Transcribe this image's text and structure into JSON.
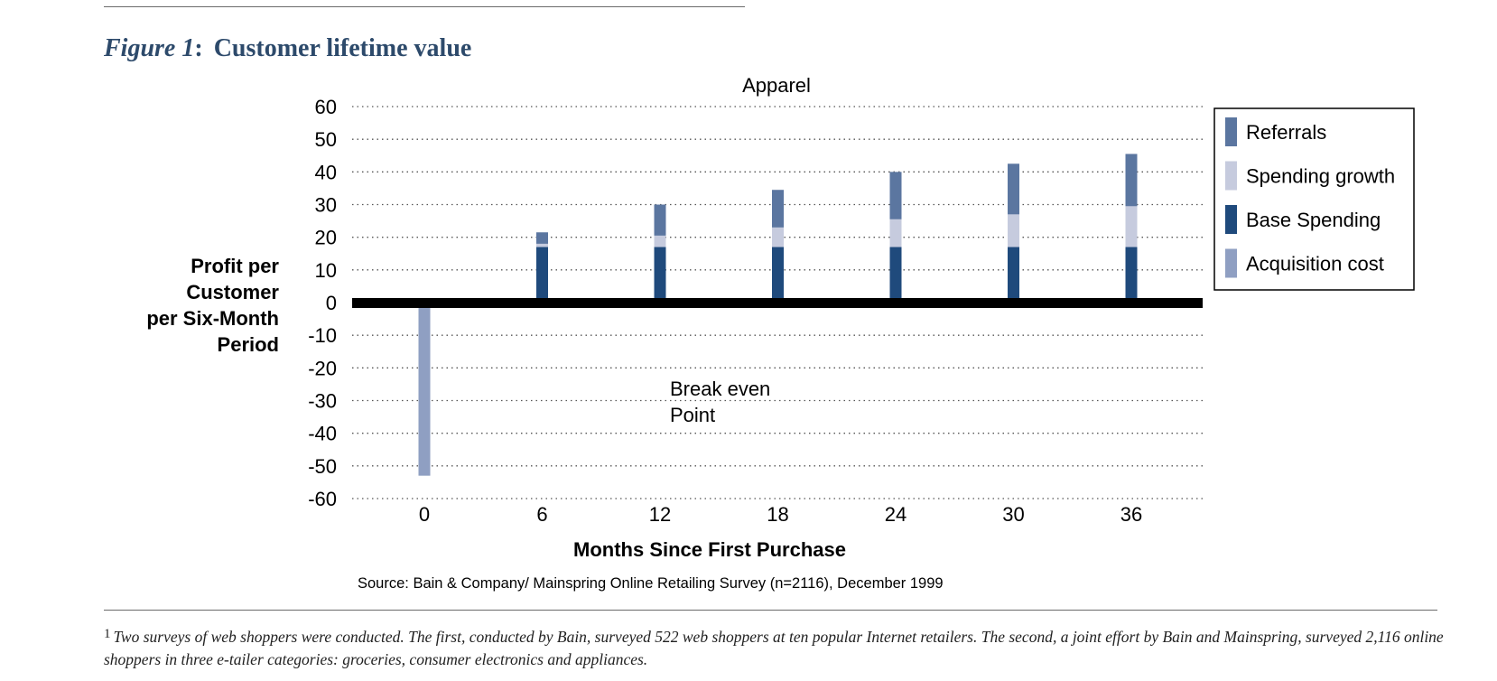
{
  "figure": {
    "label": "Figure 1",
    "title": "Customer lifetime value"
  },
  "colors": {
    "referrals": "#5b76a0",
    "spending_growth": "#c6cbde",
    "base_spending": "#1f4a7c",
    "acquisition_cost": "#8f9fc2",
    "zero_line": "#000000",
    "title": "#2d4a6b"
  },
  "chart_data": {
    "type": "bar",
    "stacked": true,
    "title": "Apparel",
    "xlabel": "Months Since First Purchase",
    "ylabel": [
      "Profit per",
      "Customer",
      "per Six-Month",
      "Period"
    ],
    "categories": [
      "0",
      "6",
      "12",
      "18",
      "24",
      "30",
      "36"
    ],
    "ylim": [
      -60,
      60
    ],
    "yticks": [
      60,
      50,
      40,
      30,
      20,
      10,
      0,
      -10,
      -20,
      -30,
      -40,
      -50,
      -60
    ],
    "grid": "dotted horizontal",
    "series": [
      {
        "name": "Acquisition cost",
        "color_key": "acquisition_cost",
        "values": [
          -53,
          0,
          0,
          0,
          0,
          0,
          0
        ]
      },
      {
        "name": "Base Spending",
        "color_key": "base_spending",
        "values": [
          0,
          17,
          17,
          17,
          17,
          17,
          17
        ]
      },
      {
        "name": "Spending growth",
        "color_key": "spending_growth",
        "values": [
          0,
          1,
          3.5,
          6,
          8.5,
          10,
          12.5
        ]
      },
      {
        "name": "Referrals",
        "color_key": "referrals",
        "values": [
          0,
          3.5,
          9.5,
          11.5,
          14.5,
          15.5,
          16
        ]
      }
    ],
    "legend": {
      "placement": "right",
      "items": [
        {
          "name": "Referrals",
          "color_key": "referrals"
        },
        {
          "name": "Spending growth",
          "color_key": "spending_growth"
        },
        {
          "name": "Base Spending",
          "color_key": "base_spending"
        },
        {
          "name": "Acquisition cost",
          "color_key": "acquisition_cost"
        }
      ]
    },
    "annotations": [
      {
        "lines": [
          "Break even",
          "Point"
        ]
      }
    ],
    "source": "Source: Bain & Company/ Mainspring Online Retailing Survey (n=2116), December 1999"
  },
  "footnote": {
    "marker": "1",
    "text": "Two surveys of web shoppers were conducted. The first, conducted by Bain, surveyed 522 web shoppers at ten popular Internet retailers. The second, a joint effort by Bain and Mainspring, surveyed 2,116 online shoppers in three e-tailer categories: groceries, consumer electronics and appliances."
  }
}
